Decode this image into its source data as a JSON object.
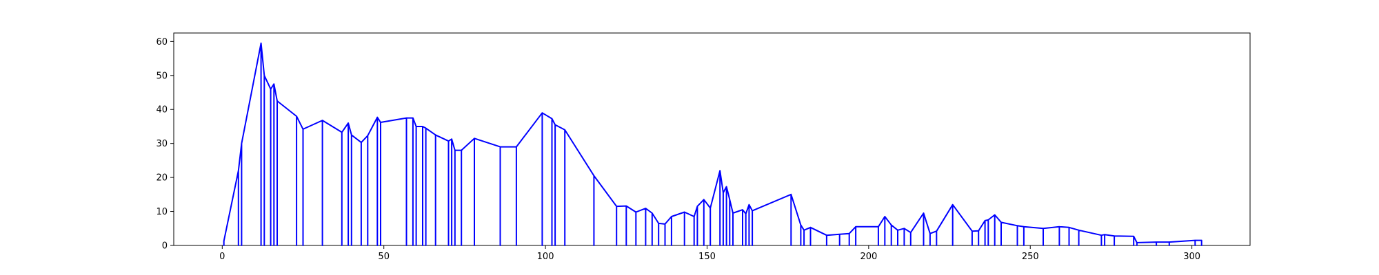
{
  "chart_data": {
    "type": "line",
    "title": "",
    "xlabel": "",
    "ylabel": "",
    "xlim": [
      -15,
      318
    ],
    "ylim": [
      0,
      62.5
    ],
    "grid": false,
    "line_color": "#0000ff",
    "x_ticks": [
      0,
      50,
      100,
      150,
      200,
      250,
      300
    ],
    "x_tick_labels": [
      "0",
      "50",
      "100",
      "150",
      "200",
      "250",
      "300"
    ],
    "y_ticks": [
      0,
      10,
      20,
      30,
      40,
      50,
      60
    ],
    "y_tick_labels": [
      "0",
      "10",
      "20",
      "30",
      "40",
      "50",
      "60"
    ],
    "series": [
      {
        "points": [
          [
            0.5,
            0
          ],
          [
            0.5,
            1.3
          ],
          [
            5,
            22
          ],
          [
            6,
            30
          ],
          [
            12,
            59.5
          ],
          [
            13,
            50
          ],
          [
            15,
            46
          ],
          [
            16,
            47.5
          ],
          [
            17,
            42.5
          ],
          [
            23,
            38
          ],
          [
            25,
            34.2
          ],
          [
            31,
            36.8
          ],
          [
            37,
            33.3
          ],
          [
            39,
            36
          ],
          [
            40,
            32.5
          ],
          [
            43,
            30.3
          ],
          [
            45,
            32.3
          ],
          [
            48,
            37.7
          ],
          [
            49,
            36.2
          ],
          [
            57,
            37.5
          ],
          [
            59,
            37.5
          ],
          [
            60,
            35
          ],
          [
            62,
            35
          ],
          [
            63,
            34.5
          ],
          [
            66,
            32.5
          ],
          [
            70,
            30.7
          ],
          [
            71,
            31.3
          ],
          [
            72,
            28
          ],
          [
            74,
            28
          ],
          [
            78,
            31.5
          ],
          [
            86,
            29
          ],
          [
            91,
            29
          ],
          [
            99,
            39
          ],
          [
            102,
            37.3
          ],
          [
            103,
            35.5
          ],
          [
            106,
            34
          ],
          [
            115,
            20.5
          ],
          [
            122,
            11.5
          ],
          [
            125,
            11.6
          ],
          [
            128,
            9.8
          ],
          [
            131,
            10.9
          ],
          [
            133,
            9.5
          ],
          [
            135,
            6.5
          ],
          [
            137,
            6.3
          ],
          [
            139,
            8.5
          ],
          [
            143,
            9.8
          ],
          [
            146,
            8.5
          ],
          [
            147,
            11.5
          ],
          [
            149,
            13.5
          ],
          [
            151,
            11
          ],
          [
            154,
            22
          ],
          [
            155,
            15.5
          ],
          [
            156,
            17.3
          ],
          [
            157,
            13.5
          ],
          [
            158,
            9.5
          ],
          [
            161,
            10.5
          ],
          [
            162,
            9.3
          ],
          [
            163,
            12
          ],
          [
            164,
            10.2
          ],
          [
            176,
            15
          ],
          [
            179,
            6
          ],
          [
            180,
            4.5
          ],
          [
            182,
            5.3
          ],
          [
            187,
            3
          ],
          [
            191,
            3.3
          ],
          [
            194,
            3.5
          ],
          [
            196,
            5.5
          ],
          [
            203,
            5.5
          ],
          [
            205,
            8.5
          ],
          [
            207,
            6
          ],
          [
            209,
            4.5
          ],
          [
            211,
            5
          ],
          [
            213,
            3.8
          ],
          [
            217,
            9.5
          ],
          [
            219,
            3.5
          ],
          [
            221,
            4.2
          ],
          [
            226,
            12
          ],
          [
            232,
            4.2
          ],
          [
            234,
            4.3
          ],
          [
            236,
            7.3
          ],
          [
            237,
            7.5
          ],
          [
            239,
            9
          ],
          [
            241,
            6.8
          ],
          [
            246,
            5.8
          ],
          [
            248,
            5.5
          ],
          [
            254,
            5
          ],
          [
            259,
            5.5
          ],
          [
            262,
            5.3
          ],
          [
            265,
            4.5
          ],
          [
            272,
            3
          ],
          [
            273,
            3.2
          ],
          [
            276,
            2.8
          ],
          [
            282,
            2.7
          ],
          [
            283,
            0.8
          ],
          [
            289,
            1
          ],
          [
            293,
            1
          ],
          [
            301,
            1.5
          ],
          [
            303,
            1.5
          ],
          [
            303,
            0
          ]
        ]
      }
    ]
  }
}
